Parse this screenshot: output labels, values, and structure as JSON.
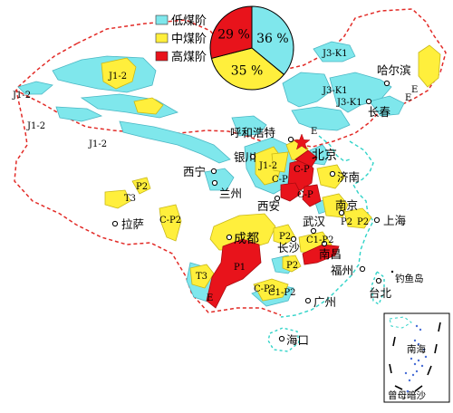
{
  "legend": {
    "items": [
      {
        "label": "低煤阶",
        "color": "#7fe7ec"
      },
      {
        "label": "中煤阶",
        "color": "#ffef3c"
      },
      {
        "label": "高煤阶",
        "color": "#e8131b"
      }
    ]
  },
  "chart_data": {
    "type": "pie",
    "categories": [
      "低煤阶",
      "中煤阶",
      "高煤阶"
    ],
    "values": [
      36,
      35,
      29
    ],
    "labels": [
      "36 %",
      "35 %",
      "29 %"
    ],
    "colors": [
      "#7fe7ec",
      "#ffef3c",
      "#e8131b"
    ]
  },
  "cities": {
    "harbin": "哈尔滨",
    "changchun": "长春",
    "hohhot": "呼和浩特",
    "beijing": "北京",
    "yinchuan": "银川",
    "xining": "西宁",
    "lanzhou": "兰州",
    "jinan": "济南",
    "xian": "西安",
    "nanjing": "南京",
    "lhasa": "拉萨",
    "wuhan": "武汉",
    "shanghai": "上海",
    "chengdu": "成都",
    "changsha": "长沙",
    "nanchang": "南昌",
    "fuzhou": "福州",
    "guangzhou": "广州",
    "taipei": "台北",
    "haikou": "海口",
    "diaoyu": "钓鱼岛",
    "nanhai": "南海",
    "zengmu": "曾母暗沙"
  },
  "strata": {
    "j12_a": "J1-2",
    "j12_b": "J1-2",
    "j12_c": "J1-2",
    "j12_d": "J1-2",
    "j12_e": "J1-2",
    "j3k1_a": "J3-K1",
    "j3k1_b": "J3-K1",
    "j3k1_c": "J3-K1",
    "e_a": "E",
    "e_b": "E",
    "e_c": "E",
    "e_d": "E",
    "p2_a": "P2",
    "p2_b": "P2",
    "p2_c": "P2",
    "p2_d": "P2",
    "p2_e": "P2",
    "t3_a": "T3",
    "t3_b": "T3",
    "cp2_a": "C-P2",
    "cp2_b": "C-P2",
    "cp2_c": "C1-P2",
    "cp2_d": "C1-P2",
    "cp_a": "C-P",
    "cp_b": "C-P",
    "cp_c": "C-P",
    "p1": "P1"
  }
}
